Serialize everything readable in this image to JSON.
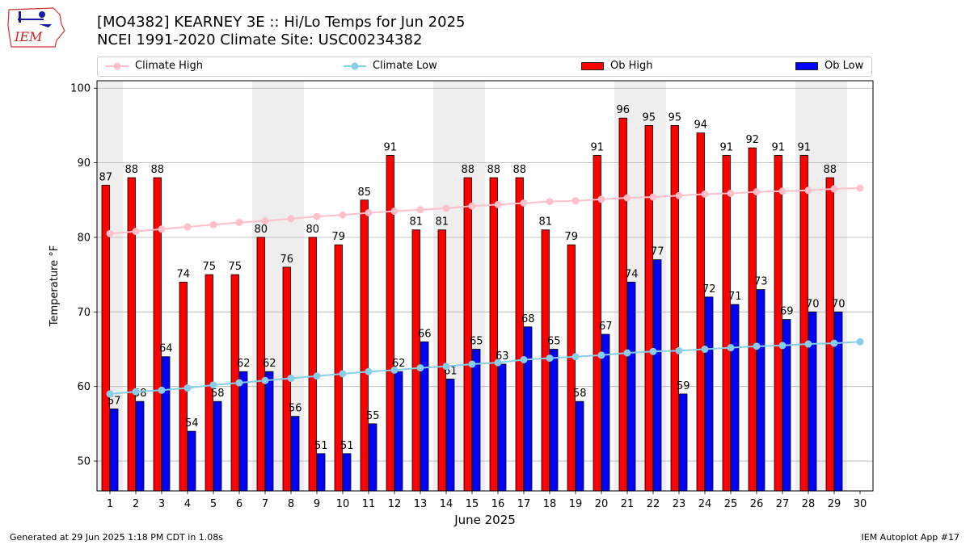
{
  "header": {
    "logo_text": "IEM",
    "title_line1": "[MO4382] KEARNEY 3E :: Hi/Lo Temps for Jun 2025",
    "title_line2": "NCEI 1991-2020 Climate Site: USC00234382"
  },
  "legend": {
    "climate_high": "Climate High",
    "climate_low": "Climate Low",
    "ob_high": "Ob High",
    "ob_low": "Ob Low"
  },
  "colors": {
    "ob_high": "#ff0000",
    "ob_low": "#0000ff",
    "climate_high": "#ffc0cb",
    "climate_low": "#87ceeb",
    "weekend_shade": "#eeeeee",
    "grid": "#b0b0b0"
  },
  "chart_data": {
    "type": "bar",
    "xlabel": "June 2025",
    "ylabel": "Temperature °F",
    "ylim": [
      46,
      101
    ],
    "yticks": [
      50,
      60,
      70,
      80,
      90,
      100
    ],
    "grid": true,
    "legend_position": "top",
    "categories": [
      "1",
      "2",
      "3",
      "4",
      "5",
      "6",
      "7",
      "8",
      "9",
      "10",
      "11",
      "12",
      "13",
      "14",
      "15",
      "16",
      "17",
      "18",
      "19",
      "20",
      "21",
      "22",
      "23",
      "24",
      "25",
      "26",
      "27",
      "28",
      "29",
      "30"
    ],
    "shaded_days": [
      1,
      7,
      8,
      14,
      15,
      21,
      22,
      28,
      29
    ],
    "series": [
      {
        "name": "Ob High",
        "kind": "bar",
        "values": [
          87,
          88,
          88,
          74,
          75,
          75,
          80,
          76,
          80,
          79,
          85,
          91,
          81,
          81,
          88,
          88,
          88,
          81,
          79,
          91,
          96,
          95,
          95,
          94,
          91,
          92,
          91,
          91,
          88,
          null
        ]
      },
      {
        "name": "Ob Low",
        "kind": "bar",
        "values": [
          57,
          58,
          64,
          54,
          58,
          62,
          62,
          56,
          51,
          51,
          55,
          62,
          66,
          61,
          65,
          63,
          68,
          65,
          58,
          67,
          74,
          77,
          59,
          72,
          71,
          73,
          69,
          70,
          70,
          null
        ]
      },
      {
        "name": "Climate High",
        "kind": "line",
        "values": [
          80.5,
          80.8,
          81.1,
          81.4,
          81.7,
          82.0,
          82.2,
          82.5,
          82.8,
          83.0,
          83.3,
          83.5,
          83.7,
          83.9,
          84.2,
          84.4,
          84.6,
          84.8,
          84.9,
          85.1,
          85.3,
          85.4,
          85.6,
          85.8,
          85.9,
          86.1,
          86.2,
          86.3,
          86.5,
          86.6
        ]
      },
      {
        "name": "Climate Low",
        "kind": "line",
        "values": [
          59.0,
          59.3,
          59.5,
          59.8,
          60.2,
          60.5,
          60.8,
          61.1,
          61.4,
          61.7,
          62.0,
          62.2,
          62.5,
          62.7,
          63.0,
          63.2,
          63.6,
          63.8,
          64.0,
          64.2,
          64.5,
          64.7,
          64.8,
          65.0,
          65.2,
          65.4,
          65.5,
          65.7,
          65.8,
          66.0
        ]
      }
    ]
  },
  "footer": {
    "left": "Generated at 29 Jun 2025 1:18 PM CDT in 1.08s",
    "right": "IEM Autoplot App #17"
  }
}
